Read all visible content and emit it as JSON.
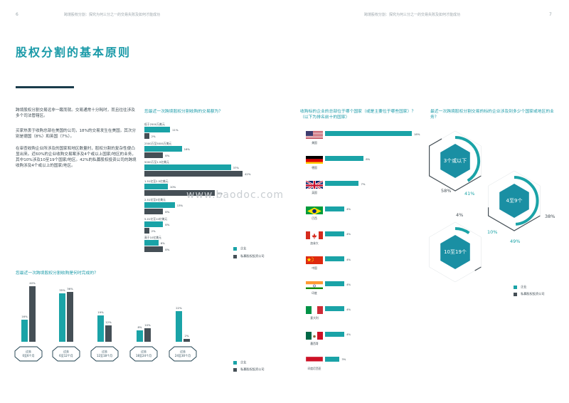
{
  "header": {
    "left_num": "6",
    "left_running": "跨境股权分割：探究为何三分之一的交易失败及如何才能成功",
    "right_running": "跨境股权分割：探究为何三分之一的交易失败及如何才能成功",
    "right_num": "7"
  },
  "title": "股权分割的基本原则",
  "intro": [
    "跨境股权分割交易远非一蹴而就。交易通常十分耗时，而且往往涉及多个司法管辖区。",
    "买家热衷于收购总部在美国的公司，18%的交易发生在美国，其次分别是德国（8%）和英国（7%）。",
    "在审查收购企业所涉及的国家和地区数量时，股权分割的复杂性便凸显出来。近60%的企业收购交易案涉及4个或以上国家/地区的业务，其中10%涉及10至19个国家/地区。42%的私募股权投资公司的跨境收购涉及4个或以上的国家/地区。"
  ],
  "legend": {
    "corp": "企业",
    "pe": "私募股权投资公司"
  },
  "colors": {
    "corp": "#1aa3a7",
    "pe": "#454f56",
    "accent": "#1a9aa8"
  },
  "deal_size": {
    "question": "您最近一次跨境股权分割收购的交易额为？",
    "rows": [
      {
        "label": "低于2500万美元",
        "corp": 11,
        "pe": 2,
        "corp_label": "11%",
        "pe_label": "2%"
      },
      {
        "label": "2500万至5000万美元",
        "corp": 16,
        "pe": 8,
        "corp_label": "16%",
        "pe_label": "8%"
      },
      {
        "label": "5000万至1.5亿美元",
        "corp": 37,
        "pe": 42,
        "corp_label": "37%",
        "pe_label": "42%"
      },
      {
        "label": "1.51亿至2.5亿美元",
        "corp": 10,
        "pe": 30,
        "corp_label": "10%",
        "pe_label": "30%"
      },
      {
        "label": "2.51亿至5亿美元",
        "corp": 13,
        "pe": 8,
        "corp_label": "13%",
        "pe_label": "8%"
      },
      {
        "label": "5.01亿至10亿美元",
        "corp": 8,
        "pe": 2,
        "corp_label": "8%",
        "pe_label": "2%"
      },
      {
        "label": "高于10亿美元",
        "corp": 6,
        "pe": 8,
        "corp_label": "6%",
        "pe_label": "8%"
      }
    ]
  },
  "duration": {
    "question": "您最近一次跨境股权分割收购是何时完成的？",
    "groups": [
      {
        "label_1": "过去",
        "label_2": "0至6个月",
        "corp": 16,
        "pe": 40,
        "corp_label": "16%",
        "pe_label": "40%"
      },
      {
        "label_1": "过去",
        "label_2": "6至12个月",
        "corp": 35,
        "pe": 36,
        "corp_label": "35%",
        "pe_label": "36%"
      },
      {
        "label_1": "过去",
        "label_2": "12至18个月",
        "corp": 19,
        "pe": 12,
        "corp_label": "19%",
        "pe_label": "12%"
      },
      {
        "label_1": "过去",
        "label_2": "18至24个月",
        "corp": 8,
        "pe": 10,
        "corp_label": "8%",
        "pe_label": "10%"
      },
      {
        "label_1": "过去",
        "label_2": "24至30个月",
        "corp": 22,
        "pe": 2,
        "corp_label": "22%",
        "pe_label": "2%"
      }
    ]
  },
  "countries": {
    "question": "收购标的企业的总部位于哪个国家（或是主要位于哪些国家）？（以下为排名前十的国家）",
    "rows": [
      {
        "name": "美国",
        "flag": "us-flag",
        "value": 18,
        "label": "18%"
      },
      {
        "name": "德国",
        "flag": "de-flag",
        "value": 8,
        "label": "8%"
      },
      {
        "name": "英国",
        "flag": "uk-flag",
        "value": 7,
        "label": "7%"
      },
      {
        "name": "巴西",
        "flag": "br-flag",
        "value": 4,
        "label": "4%"
      },
      {
        "name": "加拿大",
        "flag": "ca-flag",
        "value": 4,
        "label": "4%"
      },
      {
        "name": "中国",
        "flag": "cn-flag",
        "value": 4,
        "label": "4%"
      },
      {
        "name": "印度",
        "flag": "in-flag",
        "value": 4,
        "label": "4%"
      },
      {
        "name": "意大利",
        "flag": "it-flag",
        "value": 4,
        "label": "4%"
      },
      {
        "name": "墨西哥",
        "flag": "mx-flag",
        "value": 4,
        "label": "4%"
      },
      {
        "name": "印度尼西亚",
        "flag": "id-flag",
        "value": 3,
        "label": "3%"
      }
    ]
  },
  "jurisdictions": {
    "question": "最近一次跨境股权分割交易的标的企业涉及到多少个国家或地区的业务？",
    "groups": [
      {
        "label": "3个或以下",
        "corp": 41,
        "pe": 58,
        "corp_label": "41%",
        "pe_label": "58%"
      },
      {
        "label": "4至9个",
        "corp": 49,
        "pe": 38,
        "corp_label": "49%",
        "pe_label": "38%"
      },
      {
        "label": "10至19个",
        "corp": 10,
        "pe": 4,
        "corp_label": "10%",
        "pe_label": "4%"
      }
    ]
  },
  "watermark": "www.baodoc.com"
}
